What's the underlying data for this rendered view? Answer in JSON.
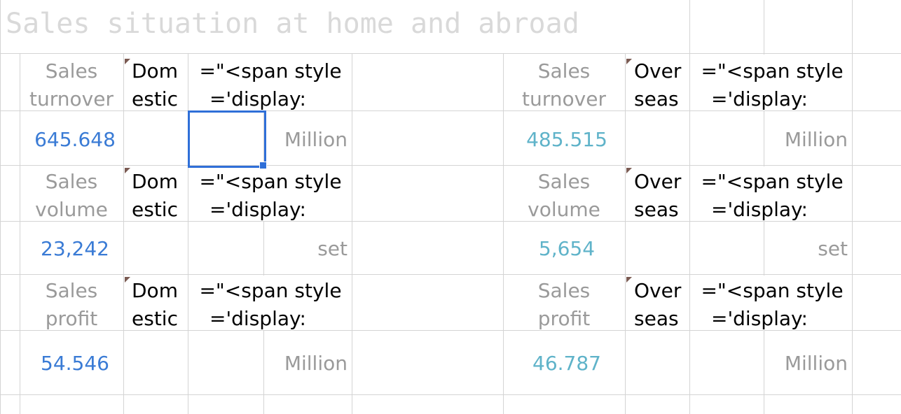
{
  "sheet": {
    "title": "Sales situation at home and abroad",
    "domestic_color": "#3a7bd5",
    "overseas_color": "#5fb3c9",
    "sections": [
      {
        "left_label": [
          "Sales",
          "turnover"
        ],
        "left_category": [
          "Dom",
          "estic"
        ],
        "left_formula": [
          "=\"<span style",
          "='display:"
        ],
        "left_value": "645.648",
        "left_unit": "Million",
        "right_label": [
          "Sales",
          "turnover"
        ],
        "right_category": [
          "Over",
          "seas"
        ],
        "right_formula": [
          "=\"<span style",
          "='display:"
        ],
        "right_value": "485.515",
        "right_unit": "Million"
      },
      {
        "left_label": [
          "Sales",
          "volume"
        ],
        "left_category": [
          "Dom",
          "estic"
        ],
        "left_formula": [
          "=\"<span style",
          "='display:"
        ],
        "left_value": "23,242",
        "left_unit": "set",
        "right_label": [
          "Sales",
          "volume"
        ],
        "right_category": [
          "Over",
          "seas"
        ],
        "right_formula": [
          "=\"<span style",
          "='display:"
        ],
        "right_value": "5,654",
        "right_unit": "set"
      },
      {
        "left_label": [
          "Sales",
          "profit"
        ],
        "left_category": [
          "Dom",
          "estic"
        ],
        "left_formula": [
          "=\"<span style",
          "='display:"
        ],
        "left_value": "54.546",
        "left_unit": "Million",
        "right_label": [
          "Sales",
          "profit"
        ],
        "right_category": [
          "Over",
          "seas"
        ],
        "right_formula": [
          "=\"<span style",
          "='display:"
        ],
        "right_value": "46.787",
        "right_unit": "Million"
      }
    ]
  }
}
